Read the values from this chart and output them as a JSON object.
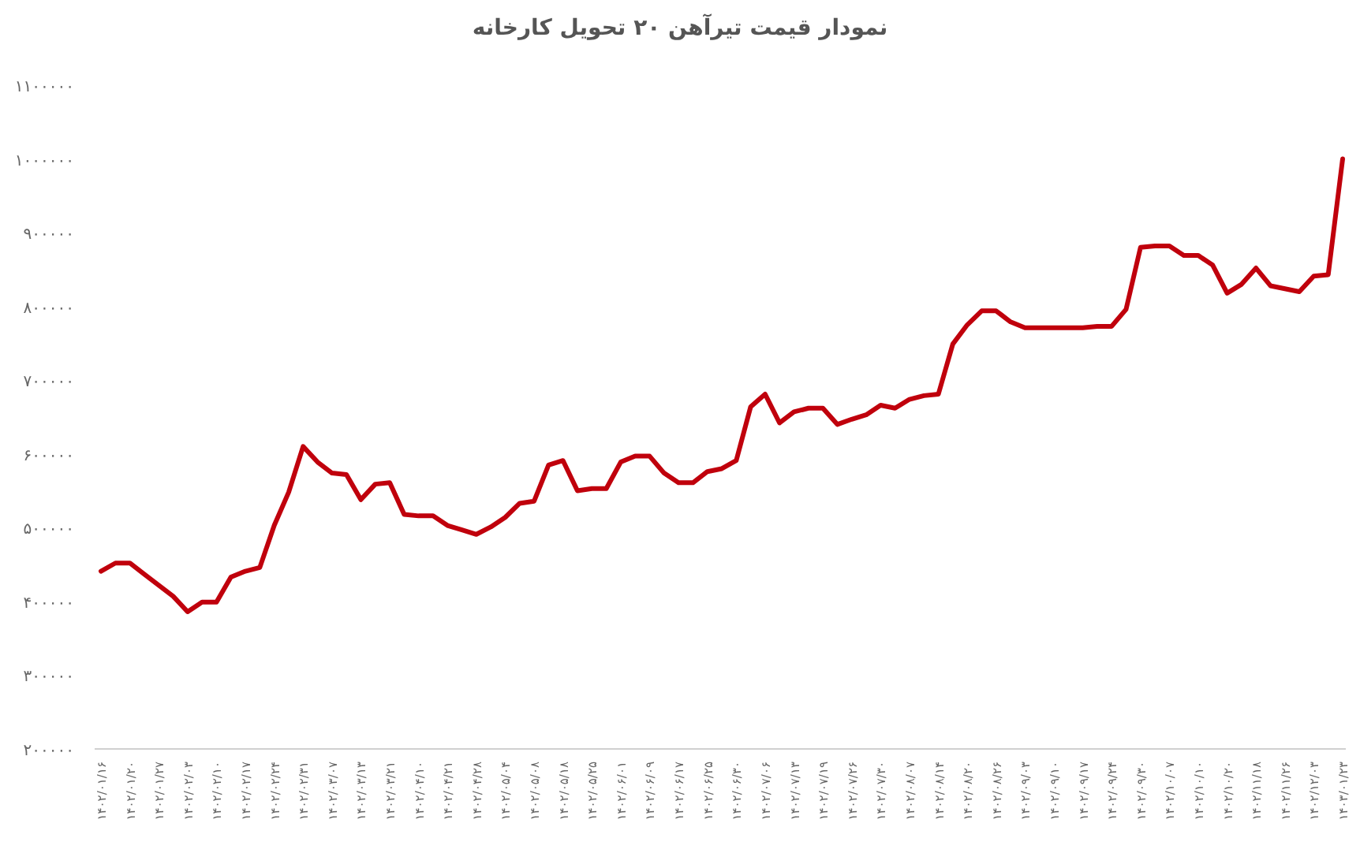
{
  "chart_data": {
    "type": "line",
    "title": "نمودار قیمت تیرآهن ۲۰ تحویل کارخانه",
    "categories": [
      "۱۴۰۲/۰۱/۱۶",
      null,
      "۱۴۰۲/۰۱/۲۰",
      null,
      "۱۴۰۲/۰۱/۲۷",
      null,
      "۱۴۰۲/۰۲/۰۳",
      null,
      "۱۴۰۲/۰۲/۱۰",
      null,
      "۱۴۰۲/۰۲/۱۷",
      null,
      "۱۴۰۲/۰۲/۲۴",
      null,
      "۱۴۰۲/۰۲/۳۱",
      null,
      "۱۴۰۲/۰۳/۰۷",
      null,
      "۱۴۰۲/۰۳/۱۳",
      null,
      "۱۴۰۲/۰۳/۲۱",
      null,
      "۱۴۰۲/۰۴/۱۰",
      null,
      "۱۴۰۲/۰۴/۲۱",
      null,
      "۱۴۰۲/۰۴/۲۸",
      null,
      "۱۴۰۲/۰۵/۰۴",
      null,
      "۱۴۰۲/۰۵/۰۸",
      null,
      "۱۴۰۲/۰۵/۱۸",
      null,
      "۱۴۰۲/۰۵/۲۵",
      null,
      "۱۴۰۲/۰۶/۰۱",
      null,
      "۱۴۰۲/۰۶/۰۹",
      null,
      "۱۴۰۲/۰۶/۱۷",
      null,
      "۱۴۰۲/۰۶/۲۵",
      null,
      "۱۴۰۲/۰۶/۳۰",
      null,
      "۱۴۰۲/۰۷/۰۶",
      null,
      "۱۴۰۲/۰۷/۱۳",
      null,
      "۱۴۰۲/۰۷/۱۹",
      null,
      "۱۴۰۲/۰۷/۲۶",
      null,
      "۱۴۰۲/۰۷/۳۰",
      null,
      "۱۴۰۲/۰۸/۰۷",
      null,
      "۱۴۰۲/۰۸/۱۴",
      null,
      "۱۴۰۲/۰۸/۲۰",
      null,
      "۱۴۰۲/۰۸/۲۶",
      null,
      "۱۴۰۲/۰۹/۰۳",
      null,
      "۱۴۰۲/۰۹/۱۰",
      null,
      "۱۴۰۲/۰۹/۱۷",
      null,
      "۱۴۰۲/۰۹/۲۴",
      null,
      "۱۴۰۲/۰۹/۳۰",
      null,
      "۱۴۰۲/۱۰/۰۷",
      null,
      "۱۴۰۲/۱۰/۱۰",
      null,
      "۱۴۰۲/۱۰/۲۰",
      null,
      "۱۴۰۲/۱۱/۱۸",
      null,
      "۱۴۰۲/۱۱/۲۶",
      null,
      "۱۴۰۲/۱۲/۰۳",
      null,
      "۱۴۰۳/۰۱/۲۳"
    ],
    "series": [
      {
        "color": "#c0000c",
        "values": [
          441000,
          452000,
          452000,
          437000,
          422000,
          407000,
          386000,
          399000,
          399000,
          433000,
          441000,
          446000,
          503000,
          548000,
          610000,
          589000,
          574000,
          572000,
          538000,
          559000,
          561000,
          518000,
          516000,
          516000,
          503000,
          497000,
          491000,
          501000,
          514000,
          533000,
          536000,
          585000,
          591000,
          550000,
          553000,
          553000,
          589000,
          597000,
          597000,
          574000,
          561000,
          561000,
          576000,
          580000,
          591000,
          664000,
          681000,
          642000,
          657000,
          662000,
          662000,
          640000,
          647000,
          653000,
          666000,
          662000,
          674000,
          679000,
          681000,
          749000,
          775000,
          794000,
          794000,
          779000,
          771000,
          771000,
          771000,
          771000,
          771000,
          773000,
          773000,
          796000,
          880000,
          882000,
          882000,
          869000,
          869000,
          856000,
          818000,
          830000,
          852000,
          828000,
          824000,
          820000,
          841000,
          843000,
          1000000
        ]
      }
    ],
    "ylim": [
      200000,
      1100000
    ],
    "yticks": [
      {
        "value": 200000,
        "label": "۲۰۰۰۰۰"
      },
      {
        "value": 300000,
        "label": "۳۰۰۰۰۰"
      },
      {
        "value": 400000,
        "label": "۴۰۰۰۰۰"
      },
      {
        "value": 500000,
        "label": "۵۰۰۰۰۰"
      },
      {
        "value": 600000,
        "label": "۶۰۰۰۰۰"
      },
      {
        "value": 700000,
        "label": "۷۰۰۰۰۰"
      },
      {
        "value": 800000,
        "label": "۸۰۰۰۰۰"
      },
      {
        "value": 900000,
        "label": "۹۰۰۰۰۰"
      },
      {
        "value": 1000000,
        "label": "۱۰۰۰۰۰۰"
      },
      {
        "value": 1100000,
        "label": "۱۱۰۰۰۰۰"
      }
    ],
    "grid": false,
    "marker": "none",
    "line_style": "solid"
  }
}
